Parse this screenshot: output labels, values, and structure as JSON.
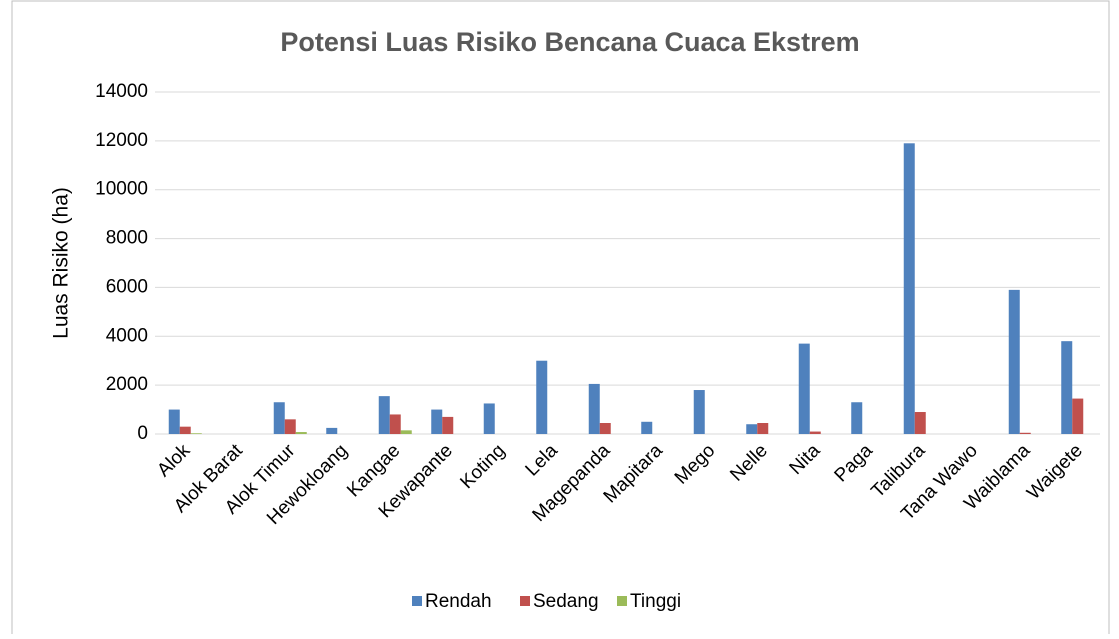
{
  "chart_data": {
    "type": "bar",
    "title": "Potensi Luas Risiko Bencana Cuaca Ekstrem",
    "y_label": "Luas Risiko (ha)",
    "categories": [
      "Alok",
      "Alok Barat",
      "Alok Timur",
      "Hewokloang",
      "Kangae",
      "Kewapante",
      "Koting",
      "Lela",
      "Magepanda",
      "Mapitara",
      "Mego",
      "Nelle",
      "Nita",
      "Paga",
      "Talibura",
      "Tana Wawo",
      "Waiblama",
      "Waigete"
    ],
    "series": [
      {
        "name": "Rendah",
        "color": "#4f81bd",
        "values": [
          1000,
          0,
          1300,
          250,
          1550,
          1000,
          1250,
          3000,
          2050,
          500,
          1800,
          400,
          3700,
          1300,
          11900,
          0,
          5900,
          3800
        ]
      },
      {
        "name": "Sedang",
        "color": "#c0504d",
        "values": [
          300,
          0,
          600,
          0,
          800,
          700,
          0,
          0,
          450,
          0,
          0,
          450,
          100,
          0,
          900,
          0,
          50,
          1450
        ]
      },
      {
        "name": "Tinggi",
        "color": "#9bbb59",
        "values": [
          30,
          0,
          80,
          0,
          150,
          0,
          0,
          0,
          0,
          0,
          0,
          0,
          0,
          0,
          0,
          0,
          0,
          0
        ]
      }
    ],
    "ylim": [
      0,
      14000
    ],
    "yticks": [
      0,
      2000,
      4000,
      6000,
      8000,
      10000,
      12000,
      14000
    ],
    "grid": true,
    "legend": "bottom"
  }
}
